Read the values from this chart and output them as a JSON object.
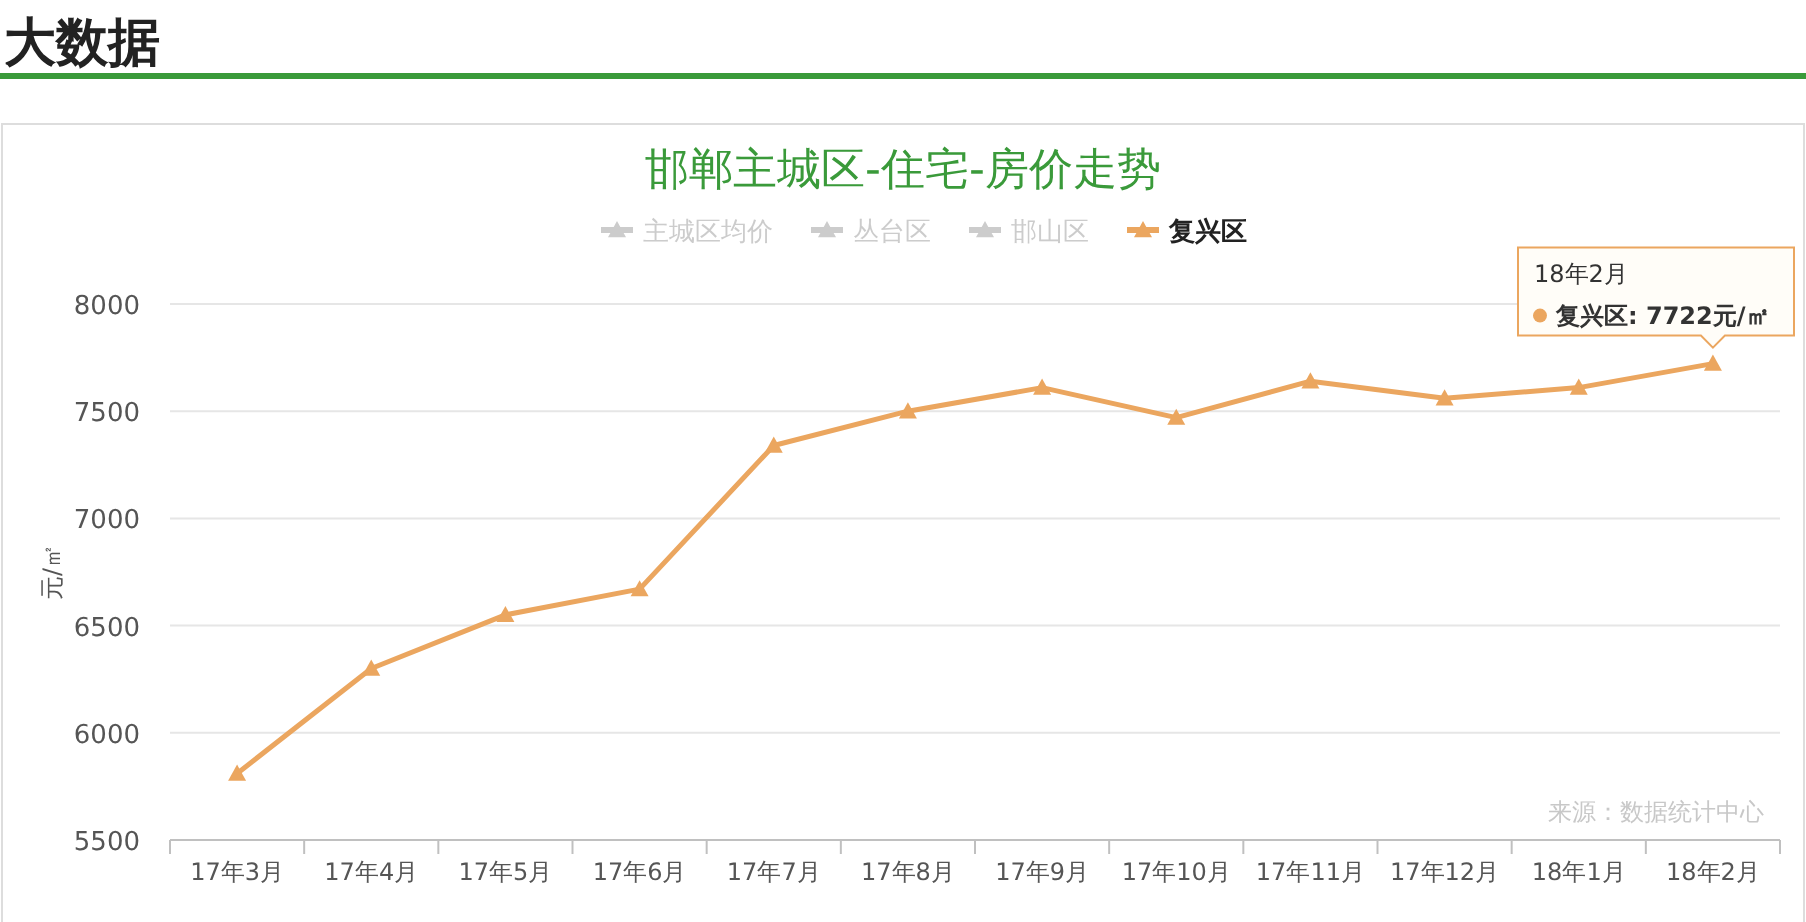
{
  "chart_data": {
    "type": "line",
    "title": "邯郸主城区-住宅-房价走势",
    "ylabel": "元/㎡",
    "categories": [
      "17年3月",
      "17年4月",
      "17年5月",
      "17年6月",
      "17年7月",
      "17年8月",
      "17年9月",
      "17年10月",
      "17年11月",
      "17年12月",
      "18年1月",
      "18年2月"
    ],
    "series": [
      {
        "name": "主城区均价",
        "color": "#cccccc",
        "values": [
          null,
          null,
          null,
          null,
          null,
          null,
          null,
          null,
          null,
          null,
          null,
          null
        ]
      },
      {
        "name": "丛台区",
        "color": "#cccccc",
        "values": [
          null,
          null,
          null,
          null,
          null,
          null,
          null,
          null,
          null,
          null,
          null,
          null
        ]
      },
      {
        "name": "邯山区",
        "color": "#cccccc",
        "values": [
          null,
          null,
          null,
          null,
          null,
          null,
          null,
          null,
          null,
          null,
          null,
          null
        ]
      },
      {
        "name": "复兴区",
        "color": "#eba65f",
        "values": [
          5810,
          6300,
          6550,
          6670,
          7340,
          7500,
          7610,
          7470,
          7640,
          7560,
          7610,
          7722
        ]
      }
    ],
    "ylim": [
      5500,
      8000
    ],
    "yticks": [
      5500,
      6000,
      6500,
      7000,
      7500,
      8000
    ],
    "grid": "y",
    "legend": "top",
    "marker": "triangle",
    "line_style": "solid",
    "annotations": [
      "大数据",
      "来源：数据统计中心",
      "18年2月",
      {
        "text": "复兴区: 7722元/㎡",
        "x": "18年2月",
        "y": 7722
      }
    ]
  }
}
